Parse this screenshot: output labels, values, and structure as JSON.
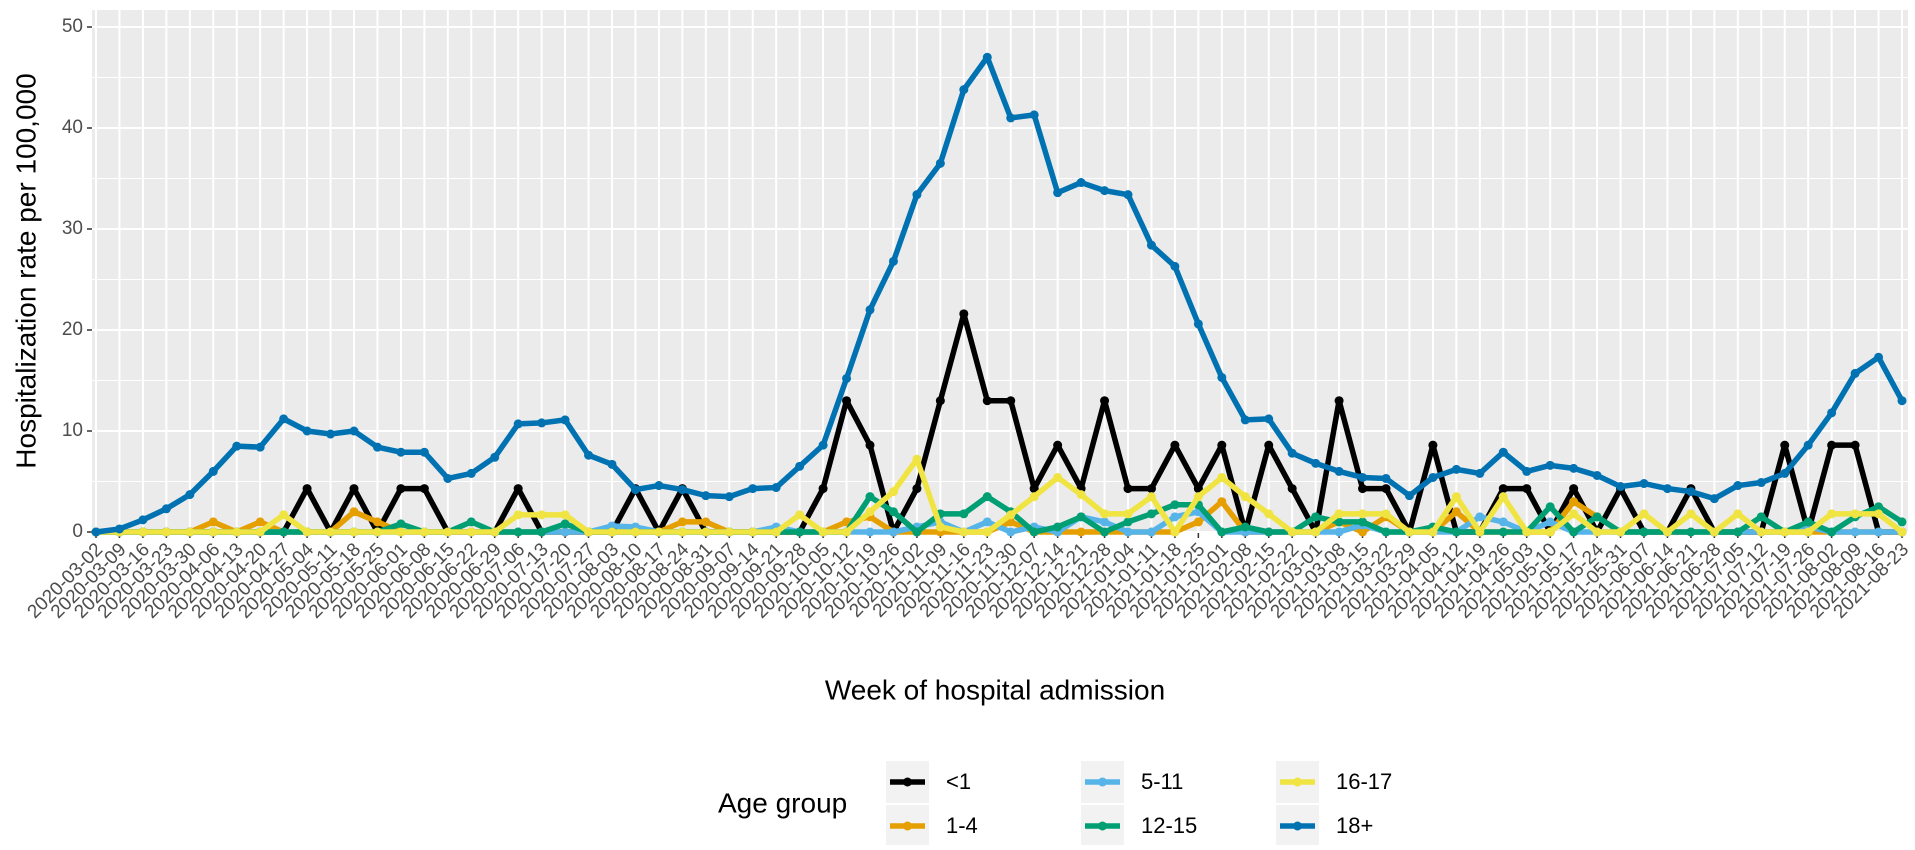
{
  "chart_data": {
    "type": "line",
    "x_label": "Week of hospital admission",
    "y_label": "Hospitalization rate per 100,000",
    "legend_title": "Age group",
    "legend": "bottom",
    "grid": true,
    "categories": [
      "2020-03-02",
      "2020-03-09",
      "2020-03-16",
      "2020-03-23",
      "2020-03-30",
      "2020-04-06",
      "2020-04-13",
      "2020-04-20",
      "2020-04-27",
      "2020-05-04",
      "2020-05-11",
      "2020-05-18",
      "2020-05-25",
      "2020-06-01",
      "2020-06-08",
      "2020-06-15",
      "2020-06-22",
      "2020-06-29",
      "2020-07-06",
      "2020-07-13",
      "2020-07-20",
      "2020-07-27",
      "2020-08-03",
      "2020-08-10",
      "2020-08-17",
      "2020-08-24",
      "2020-08-31",
      "2020-09-07",
      "2020-09-14",
      "2020-09-21",
      "2020-09-28",
      "2020-10-05",
      "2020-10-12",
      "2020-10-19",
      "2020-10-26",
      "2020-11-02",
      "2020-11-09",
      "2020-11-16",
      "2020-11-23",
      "2020-11-30",
      "2020-12-07",
      "2020-12-14",
      "2020-12-21",
      "2020-12-28",
      "2021-01-04",
      "2021-01-11",
      "2021-01-18",
      "2021-01-25",
      "2021-02-01",
      "2021-02-08",
      "2021-02-15",
      "2021-02-22",
      "2021-03-01",
      "2021-03-08",
      "2021-03-15",
      "2021-03-22",
      "2021-03-29",
      "2021-04-05",
      "2021-04-12",
      "2021-04-19",
      "2021-04-26",
      "2021-05-03",
      "2021-05-10",
      "2021-05-17",
      "2021-05-24",
      "2021-05-31",
      "2021-06-07",
      "2021-06-14",
      "2021-06-21",
      "2021-06-28",
      "2021-07-05",
      "2021-07-12",
      "2021-07-19",
      "2021-07-26",
      "2021-08-02",
      "2021-08-09",
      "2021-08-16",
      "2021-08-23"
    ],
    "ylim": [
      0,
      50
    ],
    "yticks": [
      0,
      10,
      20,
      30,
      40,
      50
    ],
    "series": [
      {
        "name": "<1",
        "color": "#000000",
        "values": [
          0,
          0,
          0,
          0,
          0,
          0,
          0,
          0,
          0,
          4.3,
          0,
          4.3,
          0,
          4.3,
          4.3,
          0,
          0,
          0,
          4.3,
          0,
          0,
          0,
          0,
          4.3,
          0,
          4.3,
          0,
          0,
          0,
          0,
          0,
          4.3,
          13,
          8.6,
          0,
          4.3,
          13,
          21.6,
          13,
          13,
          4.3,
          8.6,
          4.3,
          13,
          4.3,
          4.3,
          8.6,
          4.3,
          8.6,
          0,
          8.6,
          4.3,
          0,
          13,
          4.3,
          4.3,
          0,
          8.6,
          0,
          0,
          4.3,
          4.3,
          0,
          4.3,
          0,
          4.3,
          0,
          0,
          4.3,
          0,
          0,
          0,
          8.6,
          0,
          8.6,
          8.6,
          0,
          0
        ]
      },
      {
        "name": "1-4",
        "color": "#E69F00",
        "values": [
          0,
          0,
          0,
          0,
          0,
          1,
          0,
          1,
          0,
          0,
          0,
          2,
          1,
          0,
          0,
          0,
          0,
          0,
          0,
          0,
          0,
          0,
          0,
          0,
          0,
          1,
          1,
          0,
          0,
          0,
          0,
          0,
          1,
          1.5,
          0,
          0,
          0,
          0,
          0,
          1,
          0,
          0,
          0,
          0,
          0,
          0,
          0,
          1,
          3,
          0,
          0,
          0,
          0,
          1,
          0,
          1.5,
          0,
          0,
          2,
          0,
          0,
          0,
          0,
          3,
          1.5,
          0,
          0,
          0,
          0,
          0,
          0,
          0,
          0,
          0,
          0,
          0,
          0,
          0
        ]
      },
      {
        "name": "5-11",
        "color": "#56B4E9",
        "values": [
          0,
          0,
          0,
          0,
          0,
          0,
          0,
          0,
          0,
          0,
          0,
          0,
          0,
          0,
          0,
          0,
          0,
          0,
          0,
          0,
          0,
          0,
          0.6,
          0.5,
          0,
          0,
          0,
          0,
          0,
          0.5,
          0,
          0,
          0,
          0,
          0,
          0.5,
          1,
          0,
          1,
          0,
          0.5,
          0,
          1.5,
          1,
          0,
          0,
          1.5,
          2,
          0,
          0,
          0,
          0,
          0,
          0,
          0.7,
          0,
          0,
          0,
          0,
          1.5,
          1,
          0,
          1,
          0,
          0,
          0,
          0,
          0,
          0,
          0,
          0,
          0,
          0,
          0.5,
          0,
          0,
          0,
          0
        ]
      },
      {
        "name": "12-15",
        "color": "#009E73",
        "values": [
          0,
          0,
          0,
          0,
          0,
          0,
          0,
          0,
          0,
          0,
          0,
          0,
          0,
          0.8,
          0,
          0,
          1,
          0,
          0,
          0,
          0.8,
          0,
          0,
          0,
          0,
          0,
          0,
          0,
          0,
          0,
          0,
          0,
          0,
          3.5,
          2,
          0,
          1.8,
          1.8,
          3.5,
          2,
          0,
          0.5,
          1.5,
          0,
          1,
          1.8,
          2.7,
          2.7,
          0,
          0.5,
          0,
          0,
          1.5,
          1,
          1,
          0,
          0,
          0.5,
          0,
          0,
          0,
          0,
          2.5,
          0,
          1.5,
          0,
          0,
          0,
          0,
          0,
          0,
          1.5,
          0,
          1,
          0,
          1.5,
          2.5,
          1
        ]
      },
      {
        "name": "16-17",
        "color": "#F0E442",
        "values": [
          0,
          0,
          0,
          0,
          0,
          0,
          0,
          0,
          1.7,
          0,
          0,
          0,
          0,
          0,
          0,
          0,
          0,
          0,
          1.7,
          1.7,
          1.7,
          0,
          0,
          0,
          0,
          0,
          0,
          0,
          0,
          0,
          1.7,
          0,
          0,
          2,
          4,
          7.2,
          0.5,
          0,
          0,
          1.7,
          3.5,
          5.4,
          3.7,
          1.8,
          1.8,
          3.5,
          0,
          3.5,
          5.4,
          3.5,
          1.8,
          0,
          0,
          1.8,
          1.8,
          1.8,
          0,
          0,
          3.5,
          0,
          3.5,
          0,
          0,
          1.8,
          0,
          0,
          1.8,
          0,
          1.8,
          0,
          1.8,
          0,
          0,
          0,
          1.8,
          1.8,
          1.8,
          0
        ]
      },
      {
        "name": "18+",
        "color": "#0072B2",
        "values": [
          0,
          0.3,
          1.2,
          2.3,
          3.7,
          6,
          8.5,
          8.4,
          11.2,
          10,
          9.7,
          10,
          8.4,
          7.9,
          7.9,
          5.3,
          5.8,
          7.4,
          10.7,
          10.8,
          11.1,
          7.6,
          6.7,
          4.2,
          4.6,
          4.2,
          3.6,
          3.5,
          4.3,
          4.4,
          6.5,
          8.6,
          15.2,
          22,
          26.8,
          33.4,
          36.5,
          43.8,
          47,
          41,
          41.3,
          33.6,
          34.6,
          33.8,
          33.4,
          28.4,
          26.3,
          20.6,
          15.3,
          11.1,
          11.2,
          7.8,
          6.8,
          6,
          5.4,
          5.3,
          3.6,
          5.4,
          6.2,
          5.8,
          7.9,
          6,
          6.6,
          6.3,
          5.6,
          4.5,
          4.8,
          4.3,
          4,
          3.3,
          4.6,
          4.9,
          5.8,
          8.6,
          11.8,
          15.7,
          17.3,
          13
        ]
      }
    ]
  }
}
